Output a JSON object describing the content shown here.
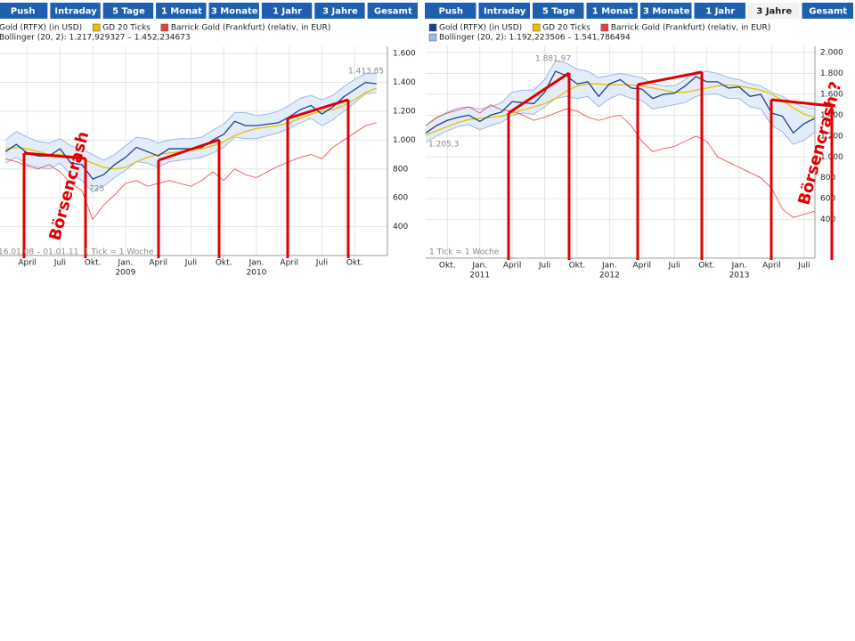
{
  "chart_data": [
    {
      "type": "line",
      "tabs": [
        "Push",
        "Intraday",
        "5 Tage",
        "1 Monat",
        "3 Monate",
        "1 Jahr",
        "3 Jahre",
        "Gesamt"
      ],
      "x": [
        "2008-02",
        "2008-03",
        "2008-04",
        "2008-05",
        "2008-06",
        "2008-07",
        "2008-08",
        "2008-09",
        "2008-10",
        "2008-11",
        "2008-12",
        "2009-01",
        "2009-02",
        "2009-03",
        "2009-04",
        "2009-05",
        "2009-06",
        "2009-07",
        "2009-08",
        "2009-09",
        "2009-10",
        "2009-11",
        "2009-12",
        "2010-01",
        "2010-02",
        "2010-03",
        "2010-04",
        "2010-05",
        "2010-06",
        "2010-07",
        "2010-08",
        "2010-09",
        "2010-10",
        "2010-11",
        "2010-12"
      ],
      "series": [
        {
          "name": "Gold (RTFX) (in USD)",
          "color": "#1f3f8f",
          "values": [
            920,
            970,
            910,
            890,
            890,
            940,
            840,
            830,
            730,
            760,
            830,
            880,
            950,
            920,
            890,
            940,
            940,
            940,
            950,
            1000,
            1040,
            1130,
            1100,
            1100,
            1110,
            1120,
            1160,
            1210,
            1240,
            1180,
            1230,
            1300,
            1350,
            1400,
            1390
          ]
        },
        {
          "name": "GD 20 Ticks",
          "color": "#e8c000",
          "values": [
            940,
            950,
            940,
            920,
            900,
            900,
            890,
            870,
            840,
            810,
            800,
            810,
            850,
            880,
            900,
            910,
            920,
            930,
            940,
            960,
            990,
            1030,
            1060,
            1080,
            1090,
            1100,
            1120,
            1150,
            1180,
            1200,
            1210,
            1240,
            1280,
            1330,
            1360
          ]
        },
        {
          "name": "Barrick Gold (Frankfurt) (relativ, in EUR)",
          "color": "#e84040",
          "values": [
            870,
            850,
            820,
            800,
            830,
            780,
            700,
            650,
            450,
            550,
            620,
            700,
            720,
            680,
            700,
            720,
            700,
            680,
            720,
            780,
            720,
            800,
            760,
            740,
            780,
            820,
            850,
            880,
            900,
            870,
            950,
            1000,
            1050,
            1100,
            1120
          ]
        },
        {
          "name": "Bollinger (20, 2): 1.217,929327 – 1.452,234673",
          "color": "#9db9e6",
          "type": "band",
          "upper": [
            1000,
            1060,
            1020,
            990,
            980,
            1010,
            960,
            940,
            900,
            860,
            900,
            960,
            1020,
            1010,
            980,
            1000,
            1010,
            1010,
            1020,
            1070,
            1110,
            1190,
            1190,
            1170,
            1180,
            1200,
            1240,
            1290,
            1310,
            1280,
            1310,
            1370,
            1420,
            1460,
            1460
          ],
          "lower": [
            840,
            880,
            830,
            810,
            800,
            840,
            760,
            720,
            640,
            680,
            740,
            790,
            850,
            840,
            810,
            850,
            860,
            870,
            880,
            910,
            950,
            1020,
            1010,
            1010,
            1030,
            1050,
            1080,
            1120,
            1150,
            1100,
            1140,
            1200,
            1260,
            1320,
            1330
          ]
        }
      ],
      "xlim": [
        "2008-01-16",
        "2011-01-01"
      ],
      "xticks": [
        {
          "value": "2008-04",
          "label": "April"
        },
        {
          "value": "2008-07",
          "label": "Juli"
        },
        {
          "value": "2008-10",
          "label": "Okt."
        },
        {
          "value": "2009-01",
          "label": "Jan."
        },
        {
          "value": "2009-04",
          "label": "April"
        },
        {
          "value": "2009-07",
          "label": "Juli"
        },
        {
          "value": "2009-10",
          "label": "Okt."
        },
        {
          "value": "2010-01",
          "label": "Jan."
        },
        {
          "value": "2010-04",
          "label": "April"
        },
        {
          "value": "2010-07",
          "label": "Juli"
        },
        {
          "value": "2010-10",
          "label": "Okt."
        }
      ],
      "year_ticks": [
        {
          "value": "2009-01",
          "label": "2009"
        },
        {
          "value": "2010-01",
          "label": "2010"
        }
      ],
      "ylim": [
        200,
        1650
      ],
      "yticks": [
        400,
        600,
        800,
        {
          "value": 1000,
          "label": "1.000"
        },
        {
          "value": 1200,
          "label": "1.200"
        },
        {
          "value": 1400,
          "label": "1.400"
        },
        {
          "value": 1600,
          "label": "1.600"
        }
      ],
      "grid": true,
      "annotations": [
        "1.413,85",
        "725",
        "16.01.08 – 01.01.11",
        "1 Tick = 1 Woche",
        "Börsencrash"
      ]
    },
    {
      "type": "line",
      "tabs": [
        "Push",
        "Intraday",
        "5 Tage",
        "1 Monat",
        "3 Monate",
        "1 Jahr",
        "3 Jahre",
        "Gesamt"
      ],
      "active_tab": "3 Jahre",
      "x": [
        "2010-08",
        "2010-09",
        "2010-10",
        "2010-11",
        "2010-12",
        "2011-01",
        "2011-02",
        "2011-03",
        "2011-04",
        "2011-05",
        "2011-06",
        "2011-07",
        "2011-08",
        "2011-09",
        "2011-10",
        "2011-11",
        "2011-12",
        "2012-01",
        "2012-02",
        "2012-03",
        "2012-04",
        "2012-05",
        "2012-06",
        "2012-07",
        "2012-08",
        "2012-09",
        "2012-10",
        "2012-11",
        "2012-12",
        "2013-01",
        "2013-02",
        "2013-03",
        "2013-04",
        "2013-05",
        "2013-06",
        "2013-07",
        "2013-08"
      ],
      "series": [
        {
          "name": "Gold (RTFX) (in USD)",
          "color": "#1f3f8f",
          "values": [
            1230,
            1300,
            1350,
            1380,
            1400,
            1340,
            1400,
            1430,
            1530,
            1520,
            1510,
            1620,
            1820,
            1780,
            1700,
            1720,
            1580,
            1700,
            1740,
            1660,
            1650,
            1560,
            1600,
            1610,
            1680,
            1770,
            1720,
            1720,
            1660,
            1670,
            1580,
            1600,
            1420,
            1390,
            1230,
            1320,
            1370
          ]
        },
        {
          "name": "GD 20 Ticks",
          "color": "#e8c000",
          "values": [
            1210,
            1250,
            1290,
            1330,
            1360,
            1370,
            1380,
            1390,
            1420,
            1450,
            1480,
            1510,
            1560,
            1630,
            1680,
            1700,
            1700,
            1690,
            1690,
            1690,
            1680,
            1660,
            1640,
            1620,
            1620,
            1640,
            1660,
            1680,
            1690,
            1680,
            1660,
            1640,
            1600,
            1540,
            1470,
            1410,
            1380
          ]
        },
        {
          "name": "Barrick Gold (Frankfurt) (relativ, in EUR)",
          "color": "#e84040",
          "values": [
            1300,
            1380,
            1420,
            1450,
            1480,
            1420,
            1500,
            1450,
            1440,
            1400,
            1350,
            1380,
            1420,
            1460,
            1440,
            1380,
            1350,
            1380,
            1400,
            1300,
            1150,
            1050,
            1080,
            1100,
            1150,
            1200,
            1150,
            1000,
            950,
            900,
            850,
            800,
            700,
            500,
            420,
            450,
            480
          ]
        },
        {
          "name": "Bollinger (20, 2): 1.192,223506 – 1.541,786494",
          "color": "#9db9e6",
          "type": "band",
          "upper": [
            1300,
            1370,
            1430,
            1470,
            1480,
            1460,
            1480,
            1520,
            1620,
            1640,
            1640,
            1740,
            1920,
            1900,
            1840,
            1820,
            1760,
            1780,
            1800,
            1780,
            1760,
            1700,
            1680,
            1680,
            1740,
            1820,
            1820,
            1800,
            1760,
            1740,
            1700,
            1680,
            1620,
            1580,
            1520,
            1480,
            1460
          ],
          "lower": [
            1140,
            1200,
            1250,
            1290,
            1310,
            1260,
            1300,
            1330,
            1400,
            1420,
            1410,
            1480,
            1560,
            1580,
            1560,
            1580,
            1480,
            1560,
            1600,
            1560,
            1540,
            1460,
            1480,
            1500,
            1520,
            1580,
            1600,
            1600,
            1560,
            1560,
            1480,
            1460,
            1300,
            1240,
            1120,
            1160,
            1240
          ]
        }
      ],
      "xlim": [
        "2010-08",
        "2013-08"
      ],
      "xticks": [
        {
          "value": "2010-10",
          "label": "Okt."
        },
        {
          "value": "2011-01",
          "label": "Jan."
        },
        {
          "value": "2011-04",
          "label": "April"
        },
        {
          "value": "2011-07",
          "label": "Juli"
        },
        {
          "value": "2011-10",
          "label": "Okt."
        },
        {
          "value": "2012-01",
          "label": "Jan."
        },
        {
          "value": "2012-04",
          "label": "April"
        },
        {
          "value": "2012-07",
          "label": "Juli"
        },
        {
          "value": "2012-10",
          "label": "Okt."
        },
        {
          "value": "2013-01",
          "label": "Jan."
        },
        {
          "value": "2013-04",
          "label": "April"
        },
        {
          "value": "2013-07",
          "label": "Juli"
        }
      ],
      "year_ticks": [
        {
          "value": "2011-01",
          "label": "2011"
        },
        {
          "value": "2012-01",
          "label": "2012"
        },
        {
          "value": "2013-01",
          "label": "2013"
        }
      ],
      "ylim": [
        30,
        2060
      ],
      "yticks": [
        400,
        600,
        800,
        {
          "value": 1000,
          "label": "1.000"
        },
        {
          "value": 1200,
          "label": "1.200"
        },
        {
          "value": 1400,
          "label": "1.400"
        },
        {
          "value": 1600,
          "label": "1.600"
        },
        {
          "value": 1800,
          "label": "1.800"
        },
        {
          "value": 2000,
          "label": "2.000"
        }
      ],
      "grid": true,
      "annotations": [
        "1.881,97",
        "1.205,3",
        "1 Tick = 1 Woche",
        "Börsencrash ?"
      ]
    }
  ]
}
